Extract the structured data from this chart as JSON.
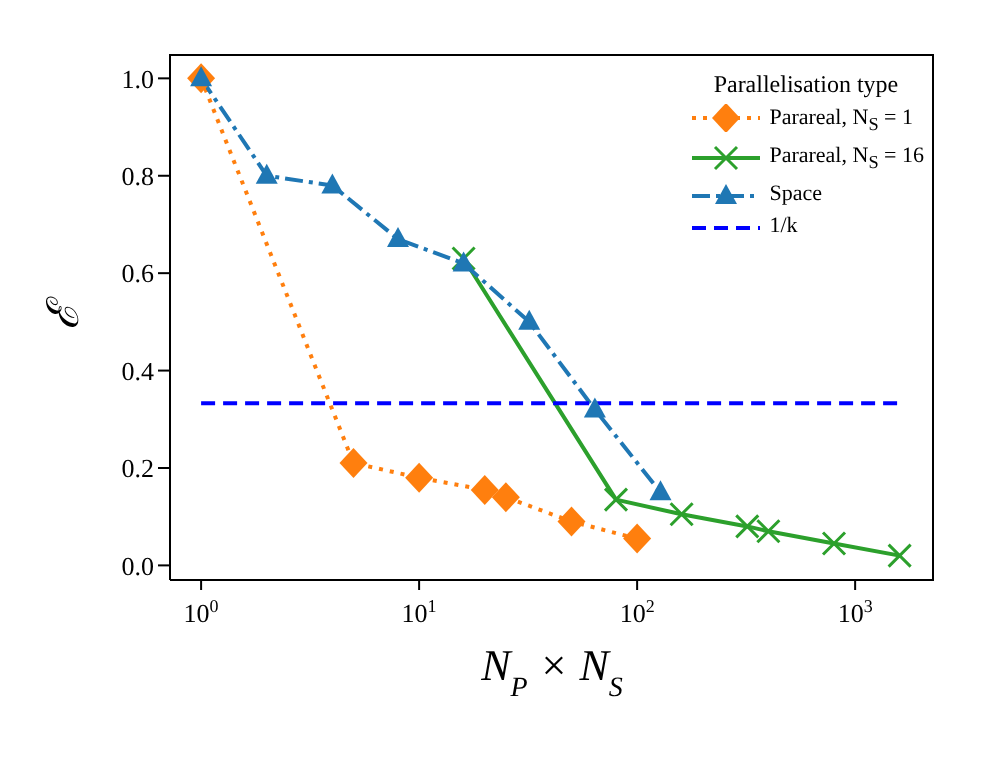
{
  "chart_data": {
    "type": "line",
    "xlabel": "N$_{P}$ × N$_{S}$",
    "ylabel": "ℰ",
    "legend_title": "Parallelisation type",
    "log": "x",
    "grid": false,
    "legend": "top right",
    "xlim": [
      0.72,
      2300
    ],
    "xticks": [
      {
        "value": 1,
        "label": "10$^{0}$"
      },
      {
        "value": 10,
        "label": "10$^{1}$"
      },
      {
        "value": 100,
        "label": "10$^{2}$"
      },
      {
        "value": 1000,
        "label": "10$^{3}$"
      }
    ],
    "ylim": [
      -0.03,
      1.05
    ],
    "yticks": [
      {
        "value": 0,
        "label": "0.0"
      },
      0.2,
      0.4,
      0.6,
      0.8,
      {
        "value": 1,
        "label": "1.0"
      }
    ],
    "series": [
      {
        "name": "Parareal, N$_{S}$ = 1",
        "color": "#ff7f0e",
        "marker": "diamond",
        "line_style": "dotted",
        "x": [
          1,
          5,
          10,
          20,
          25,
          50,
          100
        ],
        "values": [
          1.0,
          0.21,
          0.18,
          0.155,
          0.14,
          0.09,
          0.055
        ]
      },
      {
        "name": "Parareal, N$_{S}$ = 16",
        "color": "#2ca02c",
        "marker": "cross",
        "line_style": "solid",
        "x": [
          16,
          80,
          160,
          320,
          400,
          800,
          1600
        ],
        "values": [
          0.63,
          0.135,
          0.105,
          0.08,
          0.07,
          0.045,
          0.02
        ]
      },
      {
        "name": "Space",
        "color": "#1f77b4",
        "marker": "triangle",
        "line_style": "dashdot",
        "x": [
          1,
          2,
          4,
          8,
          16,
          32,
          64,
          128
        ],
        "values": [
          1.0,
          0.8,
          0.78,
          0.67,
          0.62,
          0.5,
          0.32,
          0.15
        ]
      },
      {
        "name": "1/k",
        "color": "#0000ff",
        "marker": "none",
        "line_style": "dashed",
        "x": [
          1,
          1600
        ],
        "values": [
          0.333,
          0.333
        ]
      }
    ]
  }
}
